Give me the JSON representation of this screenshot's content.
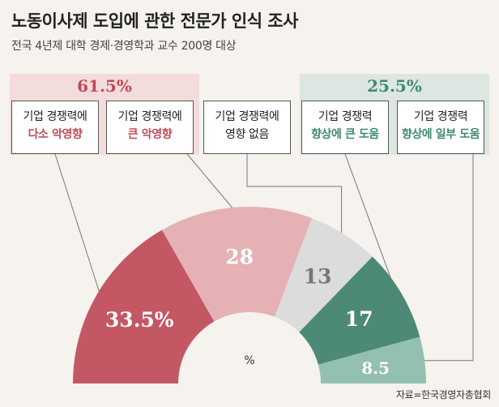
{
  "title": "노동이사제 도입에 관한 전문가 인식 조사",
  "subtitle": "전국 4년제 대학 경제·경영학과 교수 200명 대상",
  "groups": {
    "negative_total": "61.5%",
    "positive_total": "25.5%"
  },
  "categories": [
    {
      "line1": "기업 경쟁력에",
      "line2": "다소 악영향"
    },
    {
      "line1": "기업 경쟁력에",
      "line2": "큰 악영향"
    },
    {
      "line1": "기업 경쟁력에",
      "line2": "영향 없음"
    },
    {
      "line1": "기업 경쟁력",
      "line2": "향상에 큰 도움"
    },
    {
      "line1": "기업 경쟁력",
      "line2": "향상에 일부 도움"
    }
  ],
  "unit": "%",
  "source": "자료=한국경영자총협회",
  "colors": {
    "slight_negative": "#c45764",
    "large_negative": "#e5b1b5",
    "no_effect": "#dcdcdc",
    "large_positive": "#4d8a76",
    "slight_positive": "#93c0b1"
  },
  "chart_data": {
    "type": "pie",
    "shape": "half-donut",
    "slices": [
      {
        "category": "기업 경쟁력에 다소 악영향",
        "value": 33.5,
        "label": "33.5%"
      },
      {
        "category": "기업 경쟁력에 큰 악영향",
        "value": 28,
        "label": "28"
      },
      {
        "category": "기업 경쟁력에 영향 없음",
        "value": 13,
        "label": "13"
      },
      {
        "category": "기업 경쟁력 향상에 큰 도움",
        "value": 17,
        "label": "17"
      },
      {
        "category": "기업 경쟁력 향상에 일부 도움",
        "value": 8.5,
        "label": "8.5"
      }
    ]
  }
}
